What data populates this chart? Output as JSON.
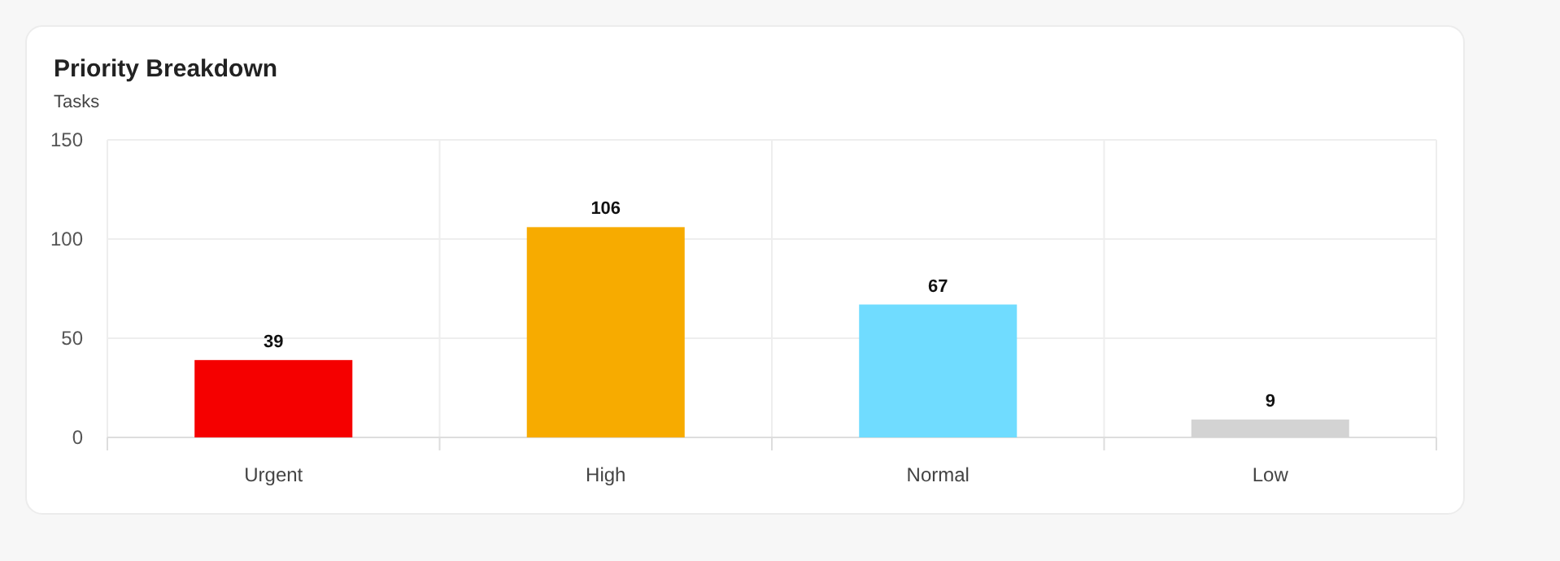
{
  "chart_data": {
    "type": "bar",
    "title": "Priority Breakdown",
    "subtitle": "Tasks",
    "categories": [
      "Urgent",
      "High",
      "Normal",
      "Low"
    ],
    "values": [
      39,
      106,
      67,
      9
    ],
    "colors": [
      "#f50000",
      "#f7ab00",
      "#70dcff",
      "#d3d3d3"
    ],
    "ylim": [
      0,
      150
    ],
    "yticks": [
      0,
      50,
      100,
      150
    ],
    "grid": true,
    "data_labels": true
  }
}
